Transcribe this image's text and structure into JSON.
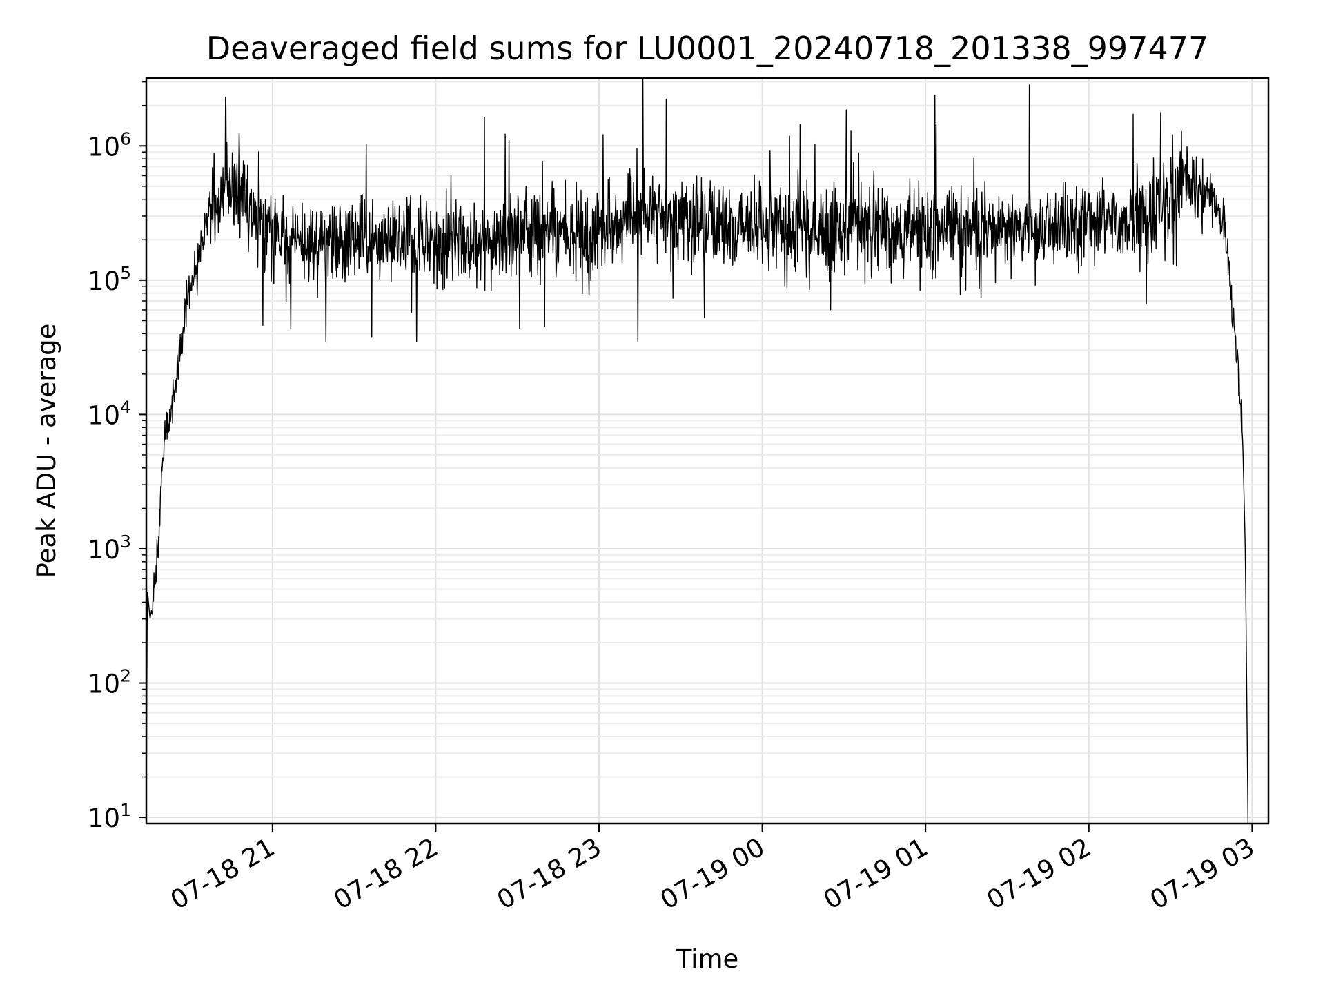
{
  "chart_data": {
    "type": "line",
    "title": "Deaveraged field sums for LU0001_20240718_201338_997477",
    "xlabel": "Time",
    "ylabel": "Peak ADU - average",
    "yscale": "log",
    "ylim": [
      9,
      3200000
    ],
    "xlim": [
      "2024-07-18 20:13:38",
      "2024-07-19 03:06:00"
    ],
    "x_ticks": [
      "07-18 21",
      "07-18 22",
      "07-18 23",
      "07-19 00",
      "07-19 01",
      "07-19 02",
      "07-19 03"
    ],
    "y_ticks": [
      {
        "base": "10",
        "exp": "1",
        "value": 10
      },
      {
        "base": "10",
        "exp": "2",
        "value": 100
      },
      {
        "base": "10",
        "exp": "3",
        "value": 1000
      },
      {
        "base": "10",
        "exp": "4",
        "value": 10000
      },
      {
        "base": "10",
        "exp": "5",
        "value": 100000
      },
      {
        "base": "10",
        "exp": "6",
        "value": 1000000
      }
    ],
    "grid": true,
    "series": [
      {
        "color": "#000000",
        "x": [
          "2024-07-18 20:13:38",
          "2024-07-18 20:14:00",
          "2024-07-18 20:15:00",
          "2024-07-18 20:16:00",
          "2024-07-18 20:18:00",
          "2024-07-18 20:20:00",
          "2024-07-18 20:22:00",
          "2024-07-18 20:24:00",
          "2024-07-18 20:27:00",
          "2024-07-18 20:30:00",
          "2024-07-18 20:33:00",
          "2024-07-18 20:36:00",
          "2024-07-18 20:40:00",
          "2024-07-18 20:45:00",
          "2024-07-18 20:50:00",
          "2024-07-18 20:55:00",
          "2024-07-18 21:00:00",
          "2024-07-18 21:10:00",
          "2024-07-18 21:20:00",
          "2024-07-18 21:30:00",
          "2024-07-18 21:45:00",
          "2024-07-18 22:00:00",
          "2024-07-18 22:15:00",
          "2024-07-18 22:30:00",
          "2024-07-18 22:45:00",
          "2024-07-18 23:00:00",
          "2024-07-18 23:10:00",
          "2024-07-18 23:20:00",
          "2024-07-18 23:40:00",
          "2024-07-19 00:00:00",
          "2024-07-19 00:20:00",
          "2024-07-19 00:40:00",
          "2024-07-19 01:00:00",
          "2024-07-19 01:20:00",
          "2024-07-19 01:40:00",
          "2024-07-19 02:00:00",
          "2024-07-19 02:15:00",
          "2024-07-19 02:25:00",
          "2024-07-19 02:33:00",
          "2024-07-19 02:38:00",
          "2024-07-19 02:42:00",
          "2024-07-19 02:46:00",
          "2024-07-19 02:50:00",
          "2024-07-19 02:53:00",
          "2024-07-19 02:55:00",
          "2024-07-19 02:56:30",
          "2024-07-19 02:57:30",
          "2024-07-19 02:58:30"
        ],
        "y": [
          10,
          500,
          300,
          400,
          1200,
          6000,
          10000,
          15000,
          40000,
          90000,
          150000,
          300000,
          420000,
          550000,
          420000,
          300000,
          220000,
          200000,
          180000,
          200000,
          190000,
          200000,
          210000,
          230000,
          220000,
          210000,
          320000,
          280000,
          260000,
          250000,
          240000,
          250000,
          240000,
          230000,
          240000,
          250000,
          280000,
          350000,
          480000,
          520000,
          480000,
          380000,
          250000,
          50000,
          20000,
          7000,
          1000,
          9
        ]
      }
    ]
  }
}
